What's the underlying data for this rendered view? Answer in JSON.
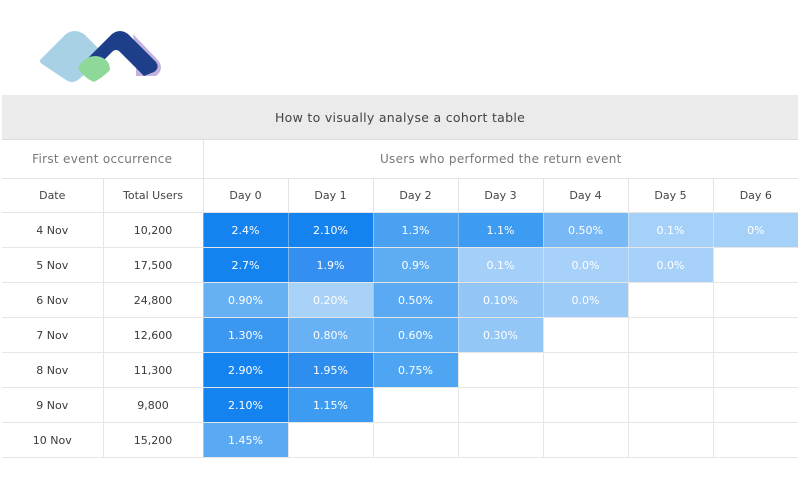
{
  "logo": {
    "name": "brand-logo",
    "colors": [
      "#a8d1e6",
      "#1d3f8a",
      "#c4b3de",
      "#8ed99a"
    ]
  },
  "table": {
    "title": "How to visually analyse a cohort table",
    "group_headers": {
      "first_event": "First event occurrence",
      "return_event": "Users who performed the return event"
    },
    "columns": [
      "Date",
      "Total Users",
      "Day 0",
      "Day 1",
      "Day 2",
      "Day 3",
      "Day 4",
      "Day 5",
      "Day 6"
    ],
    "rows": [
      {
        "date": "4 Nov",
        "users": "10,200",
        "cells": [
          "2.4%",
          "2.10%",
          "1.3%",
          "1.1%",
          "0.50%",
          "0.1%",
          "0%"
        ]
      },
      {
        "date": "5 Nov",
        "users": "17,500",
        "cells": [
          "2.7%",
          "1.9%",
          "0.9%",
          "0.1%",
          "0.0%",
          "0.0%"
        ]
      },
      {
        "date": "6 Nov",
        "users": "24,800",
        "cells": [
          "0.90%",
          "0.20%",
          "0.50%",
          "0.10%",
          "0.0%"
        ]
      },
      {
        "date": "7 Nov",
        "users": "12,600",
        "cells": [
          "1.30%",
          "0.80%",
          "0.60%",
          "0.30%"
        ]
      },
      {
        "date": "8 Nov",
        "users": "11,300",
        "cells": [
          "2.90%",
          "1.95%",
          "0.75%"
        ]
      },
      {
        "date": "9 Nov",
        "users": "9,800",
        "cells": [
          "2.10%",
          "1.15%"
        ]
      },
      {
        "date": "10 Nov",
        "users": "15,200",
        "cells": [
          "1.45%"
        ]
      }
    ],
    "cell_colors": [
      [
        "#1583ef",
        "#1583ef",
        "#4aa1f1",
        "#3d9bf1",
        "#77b8f5",
        "#a5d0f8",
        "#a5d0f8"
      ],
      [
        "#1583ef",
        "#358ff0",
        "#5eadf3",
        "#a3cff8",
        "#a7d1f8",
        "#a7d1f8"
      ],
      [
        "#66b0f4",
        "#a9d2f8",
        "#5aaaf3",
        "#93c6f6",
        "#9ccbf7"
      ],
      [
        "#3c97f0",
        "#68b1f4",
        "#5faef3",
        "#93c7f6"
      ],
      [
        "#1583ef",
        "#2e8ef0",
        "#4ea5f2"
      ],
      [
        "#1583ef",
        "#3d9bf1"
      ],
      [
        "#5aa9f3"
      ]
    ]
  }
}
